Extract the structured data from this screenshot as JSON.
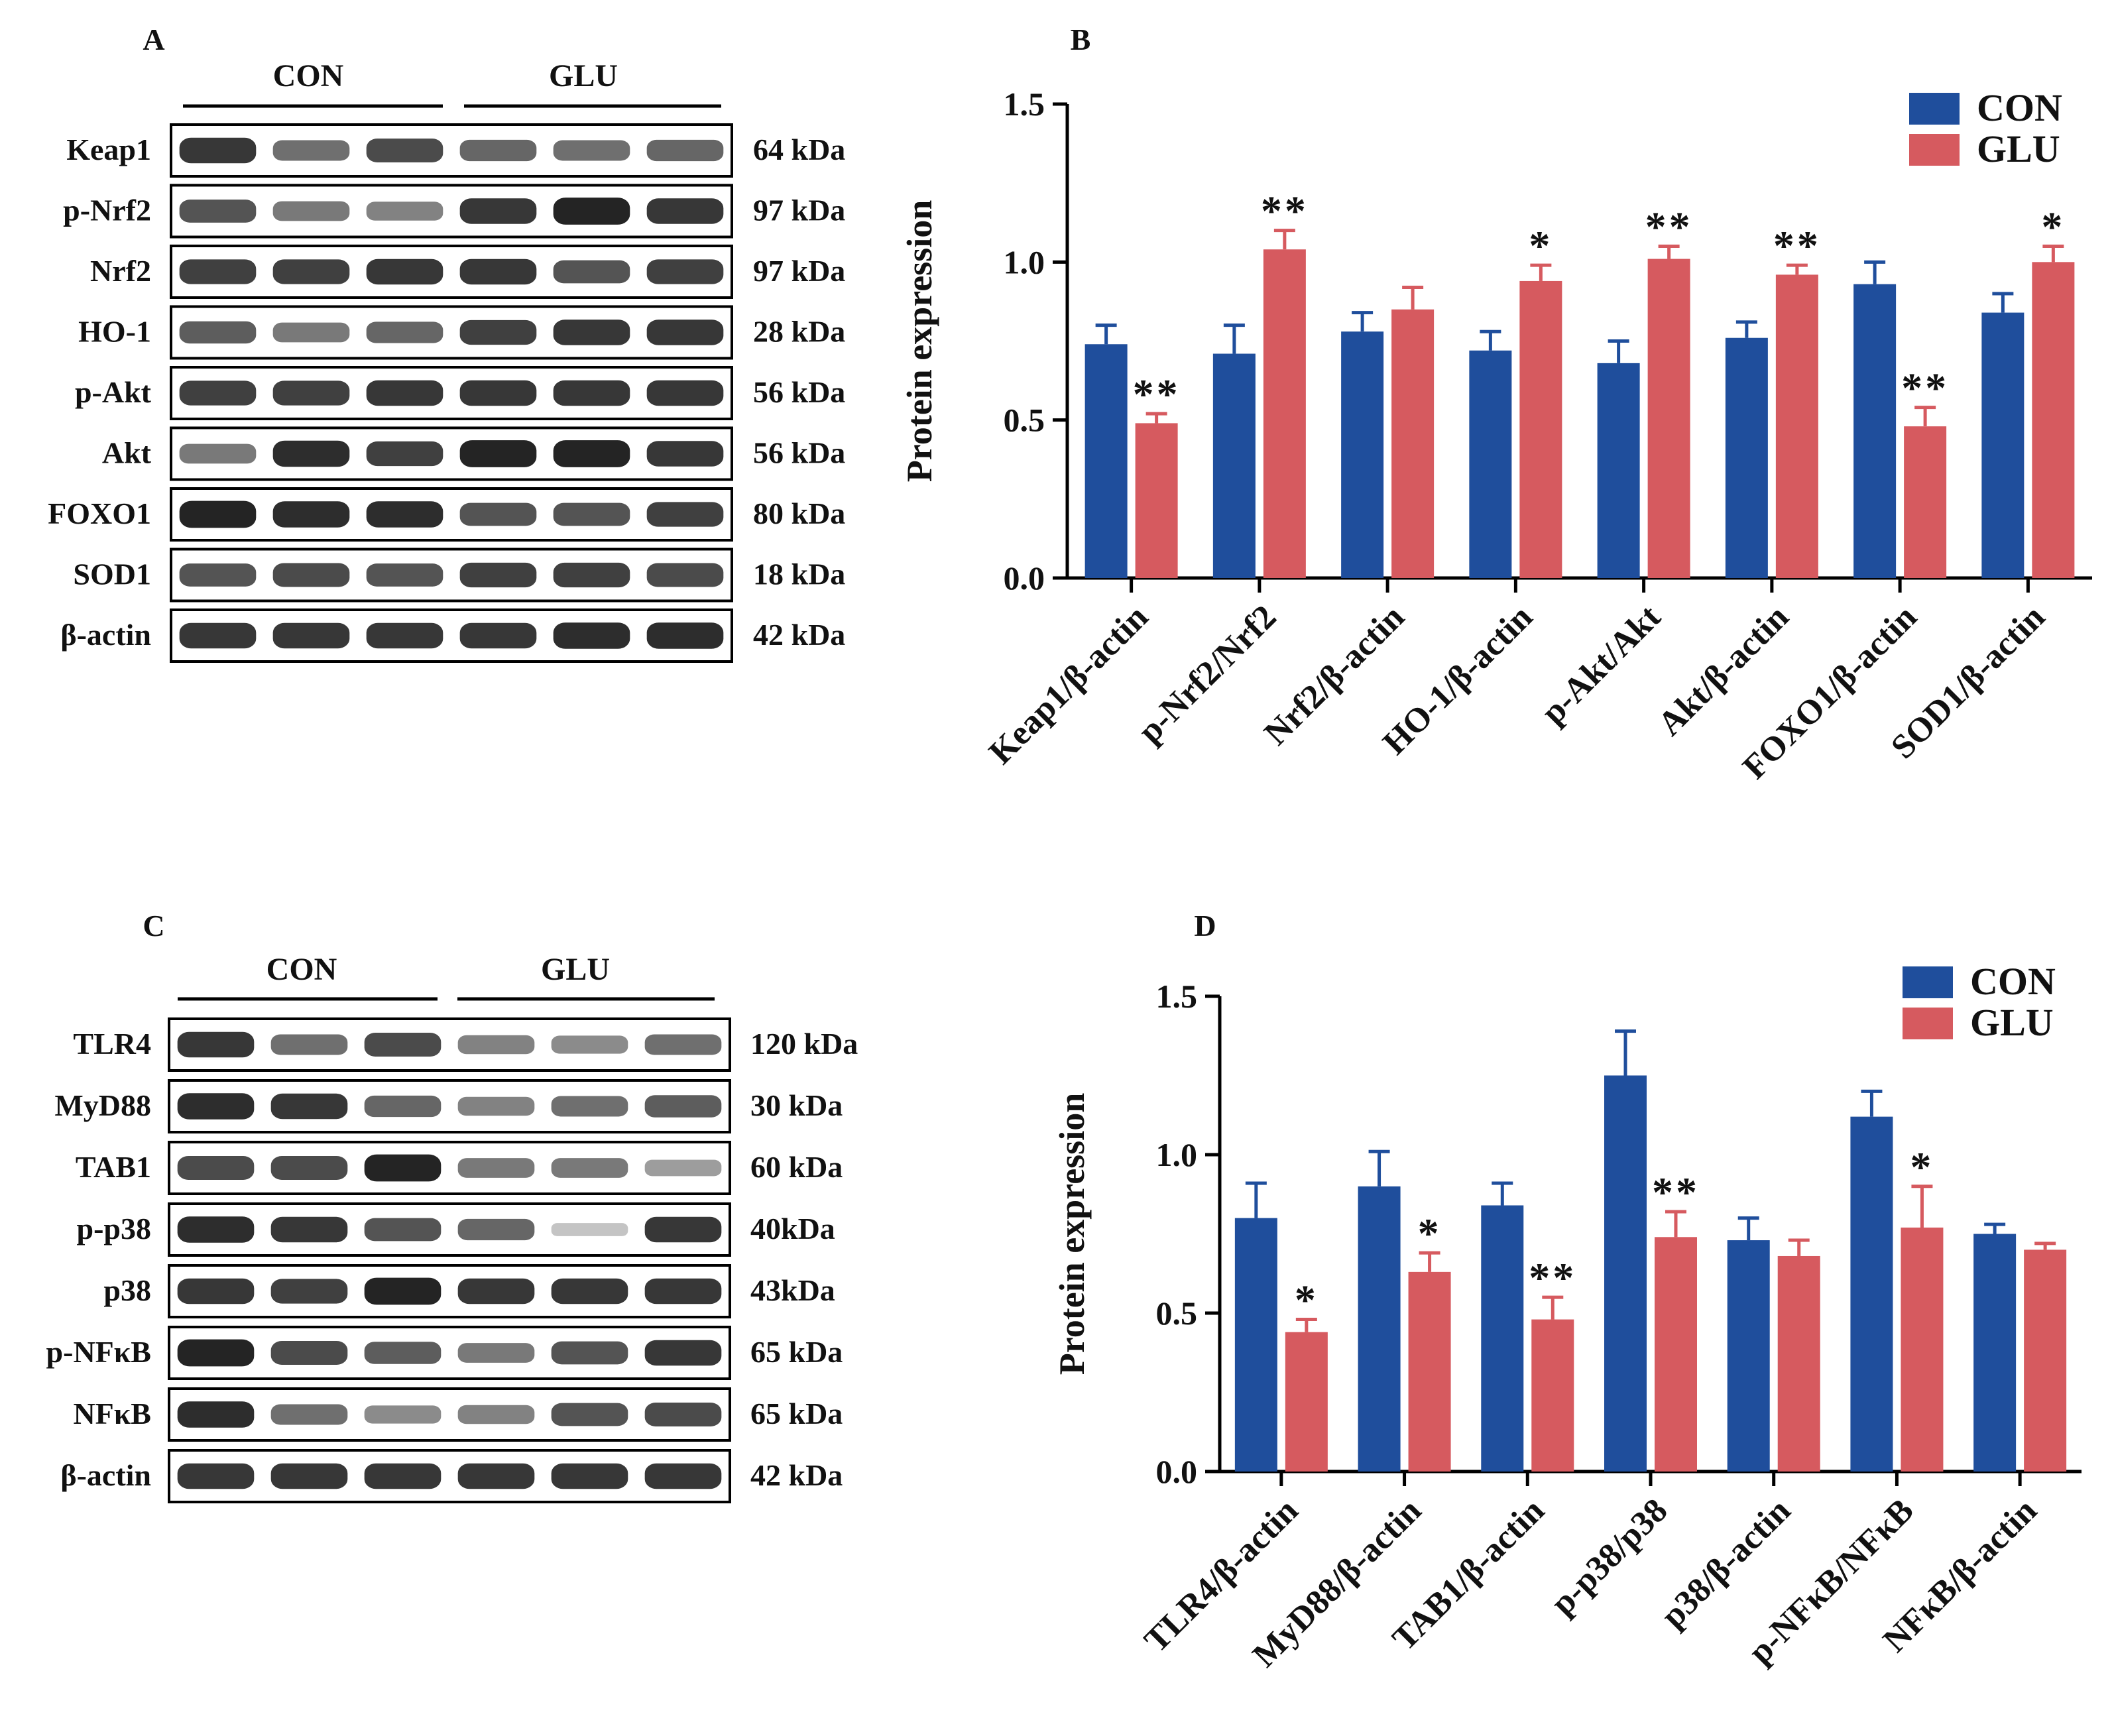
{
  "colors": {
    "con": "#1f4e9c",
    "glu": "#d65a5f",
    "band": "#1b1b1b",
    "axis": "#000000"
  },
  "blots": [
    {
      "panel": "A",
      "groups": [
        "CON",
        "GLU"
      ],
      "rows": [
        {
          "label": "Keap1",
          "kda": "64 kDa",
          "bands": [
            0.85,
            0.55,
            0.75,
            0.6,
            0.55,
            0.6
          ]
        },
        {
          "label": "p-Nrf2",
          "kda": "97 kDa",
          "bands": [
            0.7,
            0.5,
            0.45,
            0.85,
            0.95,
            0.85
          ]
        },
        {
          "label": "Nrf2",
          "kda": "97 kDa",
          "bands": [
            0.8,
            0.8,
            0.85,
            0.85,
            0.7,
            0.8
          ]
        },
        {
          "label": "HO-1",
          "kda": "28 kDa",
          "bands": [
            0.65,
            0.5,
            0.6,
            0.8,
            0.85,
            0.85
          ]
        },
        {
          "label": "p-Akt",
          "kda": "56 kDa",
          "bands": [
            0.8,
            0.8,
            0.85,
            0.85,
            0.85,
            0.85
          ]
        },
        {
          "label": "Akt",
          "kda": "56 kDa",
          "bands": [
            0.5,
            0.9,
            0.8,
            0.95,
            0.95,
            0.85
          ]
        },
        {
          "label": "FOXO1",
          "kda": "80 kDa",
          "bands": [
            0.95,
            0.9,
            0.9,
            0.7,
            0.7,
            0.8
          ]
        },
        {
          "label": "SOD1",
          "kda": "18 kDa",
          "bands": [
            0.7,
            0.75,
            0.7,
            0.8,
            0.8,
            0.75
          ]
        },
        {
          "label": "β-actin",
          "kda": "42 kDa",
          "bands": [
            0.85,
            0.85,
            0.85,
            0.85,
            0.9,
            0.9
          ]
        }
      ]
    },
    {
      "panel": "C",
      "groups": [
        "CON",
        "GLU"
      ],
      "rows": [
        {
          "label": "TLR4",
          "kda": "120 kDa",
          "bands": [
            0.85,
            0.55,
            0.75,
            0.45,
            0.4,
            0.55
          ]
        },
        {
          "label": "MyD88",
          "kda": "30 kDa",
          "bands": [
            0.9,
            0.85,
            0.6,
            0.45,
            0.55,
            0.65
          ]
        },
        {
          "label": "TAB1",
          "kda": "60 kDa",
          "bands": [
            0.75,
            0.75,
            0.95,
            0.5,
            0.5,
            0.3
          ]
        },
        {
          "label": "p-p38",
          "kda": "40kDa",
          "bands": [
            0.9,
            0.85,
            0.7,
            0.6,
            0.1,
            0.85
          ]
        },
        {
          "label": "p38",
          "kda": "43kDa",
          "bands": [
            0.85,
            0.8,
            0.95,
            0.85,
            0.85,
            0.85
          ]
        },
        {
          "label": "p-NFκB",
          "kda": "65 kDa",
          "bands": [
            0.95,
            0.75,
            0.65,
            0.5,
            0.7,
            0.85
          ]
        },
        {
          "label": "NFκB",
          "kda": "65 kDa",
          "bands": [
            0.9,
            0.55,
            0.4,
            0.45,
            0.7,
            0.75
          ]
        },
        {
          "label": "β-actin",
          "kda": "42 kDa",
          "bands": [
            0.85,
            0.85,
            0.85,
            0.85,
            0.85,
            0.85
          ]
        }
      ]
    }
  ],
  "chart_data": [
    {
      "panel": "B",
      "type": "bar",
      "title": "",
      "xlabel": "",
      "ylabel": "Protein expression",
      "ylim": [
        0,
        1.5
      ],
      "yticks": [
        "0.0",
        "0.5",
        "1.0",
        "1.5"
      ],
      "legend_position": "top-right",
      "categories": [
        "Keap1/β-actin",
        "p-Nrf2/Nrf2",
        "Nrf2/β-actin",
        "HO-1/β-actin",
        "p-Akt/Akt",
        "Akt/β-actin",
        "FOXO1/β-actin",
        "SOD1/β-actin"
      ],
      "series": [
        {
          "name": "CON",
          "values": [
            0.74,
            0.71,
            0.78,
            0.72,
            0.68,
            0.76,
            0.93,
            0.84
          ],
          "errors": [
            0.06,
            0.09,
            0.06,
            0.06,
            0.07,
            0.05,
            0.07,
            0.06
          ]
        },
        {
          "name": "GLU",
          "values": [
            0.49,
            1.04,
            0.85,
            0.94,
            1.01,
            0.96,
            0.48,
            1.0
          ],
          "errors": [
            0.03,
            0.06,
            0.07,
            0.05,
            0.04,
            0.03,
            0.06,
            0.05
          ]
        }
      ],
      "significance": [
        "**",
        "**",
        "",
        "*",
        "**",
        "**",
        "**",
        "*"
      ]
    },
    {
      "panel": "D",
      "type": "bar",
      "title": "",
      "xlabel": "",
      "ylabel": "Protein expression",
      "ylim": [
        0,
        1.5
      ],
      "yticks": [
        "0.0",
        "0.5",
        "1.0",
        "1.5"
      ],
      "legend_position": "top-right",
      "categories": [
        "TLR4/β-actin",
        "MyD88/β-actin",
        "TAB1/β-actin",
        "p-p38/p38",
        "p38/β-actin",
        "p-NFκB/NFκB",
        "NFκB/β-actin"
      ],
      "series": [
        {
          "name": "CON",
          "values": [
            0.8,
            0.9,
            0.84,
            1.25,
            0.73,
            1.12,
            0.75
          ],
          "errors": [
            0.11,
            0.11,
            0.07,
            0.14,
            0.07,
            0.08,
            0.03
          ]
        },
        {
          "name": "GLU",
          "values": [
            0.44,
            0.63,
            0.48,
            0.74,
            0.68,
            0.77,
            0.7
          ],
          "errors": [
            0.04,
            0.06,
            0.07,
            0.08,
            0.05,
            0.13,
            0.02
          ]
        }
      ],
      "significance": [
        "*",
        "*",
        "**",
        "**",
        "",
        "*",
        ""
      ]
    }
  ]
}
